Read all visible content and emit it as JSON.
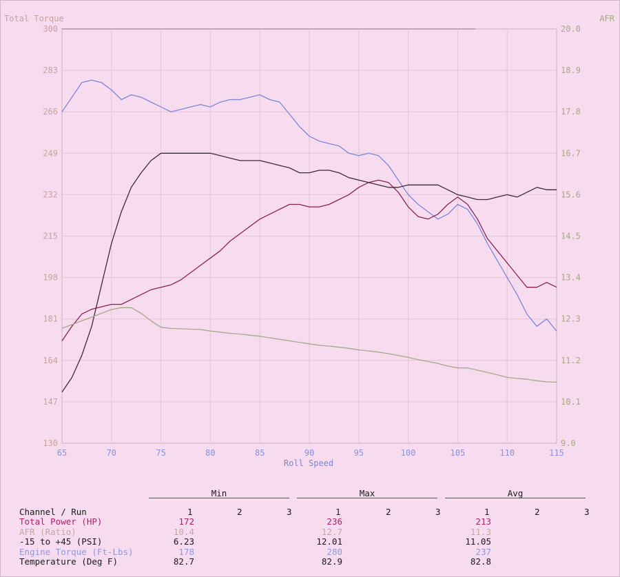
{
  "chart_data": {
    "type": "line",
    "title": "",
    "xlabel": "Roll Speed",
    "ylabel_left": "Total Torque",
    "ylabel_right": "AFR",
    "xlim": [
      65,
      115
    ],
    "ylim_left": [
      130,
      300
    ],
    "ylim_right": [
      9.0,
      20.0
    ],
    "x_ticks": [
      "65",
      "70",
      "75",
      "80",
      "85",
      "90",
      "95",
      "100",
      "105",
      "110",
      "115"
    ],
    "y_ticks_left": [
      "300",
      "283",
      "266",
      "249",
      "232",
      "215",
      "198",
      "181",
      "164",
      "147",
      "130"
    ],
    "y_ticks_right": [
      "20.0",
      "18.9",
      "17.8",
      "16.7",
      "15.6",
      "14.5",
      "13.4",
      "12.3",
      "11.2",
      "10.1",
      "9.0"
    ],
    "grid": true,
    "series": [
      {
        "name": "Engine Torque (Ft-Lbs)",
        "axis": "left",
        "color": "#7a86d8",
        "x": [
          65,
          66,
          67,
          68,
          69,
          70,
          71,
          72,
          73,
          74,
          75,
          76,
          77,
          78,
          79,
          80,
          81,
          82,
          83,
          84,
          85,
          86,
          87,
          88,
          89,
          90,
          91,
          92,
          93,
          94,
          95,
          96,
          97,
          98,
          99,
          100,
          101,
          102,
          103,
          104,
          105,
          106,
          107,
          108,
          109,
          110,
          111,
          112,
          113,
          114,
          115
        ],
        "y": [
          266,
          272,
          278,
          279,
          278,
          275,
          271,
          273,
          272,
          270,
          268,
          266,
          267,
          268,
          269,
          268,
          270,
          271,
          271,
          272,
          273,
          271,
          270,
          265,
          260,
          256,
          254,
          253,
          252,
          249,
          248,
          249,
          248,
          244,
          238,
          232,
          228,
          225,
          222,
          224,
          228,
          226,
          220,
          212,
          205,
          198,
          191,
          183,
          178,
          181,
          176
        ]
      },
      {
        "name": "Total Power (HP)",
        "axis": "left",
        "color": "#8a2050",
        "x": [
          65,
          66,
          67,
          68,
          69,
          70,
          71,
          72,
          73,
          74,
          75,
          76,
          77,
          78,
          79,
          80,
          81,
          82,
          83,
          84,
          85,
          86,
          87,
          88,
          89,
          90,
          91,
          92,
          93,
          94,
          95,
          96,
          97,
          98,
          99,
          100,
          101,
          102,
          103,
          104,
          105,
          106,
          107,
          108,
          109,
          110,
          111,
          112,
          113,
          114,
          115
        ],
        "y": [
          172,
          178,
          183,
          185,
          186,
          187,
          187,
          189,
          191,
          193,
          194,
          195,
          197,
          200,
          203,
          206,
          209,
          213,
          216,
          219,
          222,
          224,
          226,
          228,
          228,
          227,
          227,
          228,
          230,
          232,
          235,
          237,
          238,
          237,
          233,
          227,
          223,
          222,
          224,
          228,
          231,
          228,
          222,
          214,
          209,
          204,
          199,
          194,
          194,
          196,
          194
        ]
      },
      {
        "name": "-15 to +45 (PSI)",
        "axis": "left",
        "color": "#3a2a38",
        "x": [
          65,
          66,
          67,
          68,
          69,
          70,
          71,
          72,
          73,
          74,
          75,
          76,
          77,
          78,
          79,
          80,
          81,
          82,
          83,
          84,
          85,
          86,
          87,
          88,
          89,
          90,
          91,
          92,
          93,
          94,
          95,
          96,
          97,
          98,
          99,
          100,
          101,
          102,
          103,
          104,
          105,
          106,
          107,
          108,
          109,
          110,
          111,
          112,
          113,
          114,
          115
        ],
        "y": [
          151,
          157,
          166,
          178,
          195,
          212,
          225,
          235,
          241,
          246,
          249,
          249,
          249,
          249,
          249,
          249,
          248,
          247,
          246,
          246,
          246,
          245,
          244,
          243,
          241,
          241,
          242,
          242,
          241,
          239,
          238,
          237,
          236,
          235,
          235,
          236,
          236,
          236,
          236,
          234,
          232,
          231,
          230,
          230,
          231,
          232,
          231,
          233,
          235,
          234,
          234
        ]
      },
      {
        "name": "AFR (Ratio)",
        "axis": "right",
        "color": "#a8a886",
        "x": [
          65,
          66,
          67,
          68,
          69,
          70,
          71,
          72,
          73,
          74,
          75,
          76,
          77,
          78,
          79,
          80,
          81,
          82,
          83,
          84,
          85,
          86,
          87,
          88,
          89,
          90,
          91,
          92,
          93,
          94,
          95,
          96,
          97,
          98,
          99,
          100,
          101,
          102,
          103,
          104,
          105,
          106,
          107,
          108,
          109,
          110,
          111,
          112,
          113,
          114,
          115
        ],
        "y": [
          12.05,
          12.15,
          12.25,
          12.35,
          12.45,
          12.55,
          12.6,
          12.6,
          12.45,
          12.25,
          12.08,
          12.05,
          12.04,
          12.03,
          12.02,
          11.98,
          11.95,
          11.92,
          11.9,
          11.87,
          11.84,
          11.8,
          11.76,
          11.72,
          11.68,
          11.64,
          11.6,
          11.58,
          11.55,
          11.52,
          11.48,
          11.45,
          11.42,
          11.38,
          11.33,
          11.28,
          11.22,
          11.17,
          11.12,
          11.05,
          11.0,
          11.0,
          10.94,
          10.88,
          10.82,
          10.75,
          10.72,
          10.7,
          10.66,
          10.63,
          10.62
        ]
      }
    ]
  },
  "summary": {
    "groups": [
      "Min",
      "Max",
      "Avg"
    ],
    "runs": [
      "1",
      "2",
      "3"
    ],
    "channel_header": "Channel / Run",
    "rows": [
      {
        "label": "Total Power (HP)",
        "color": "#b0206a",
        "min": "172",
        "max": "236",
        "avg": "213"
      },
      {
        "label": "AFR (Ratio)",
        "color": "#c0a8a0",
        "min": "10.4",
        "max": "12.7",
        "avg": "11.3"
      },
      {
        "label": "-15 to +45 (PSI)",
        "color": "#1a1a1a",
        "min": "6.23",
        "max": "12.01",
        "avg": "11.05"
      },
      {
        "label": "Engine Torque (Ft-Lbs)",
        "color": "#9098d8",
        "min": "178",
        "max": "280",
        "avg": "237"
      },
      {
        "label": "Temperature (Deg F)",
        "color": "#1a1a1a",
        "min": "82.7",
        "max": "82.9",
        "avg": "82.8"
      }
    ]
  }
}
